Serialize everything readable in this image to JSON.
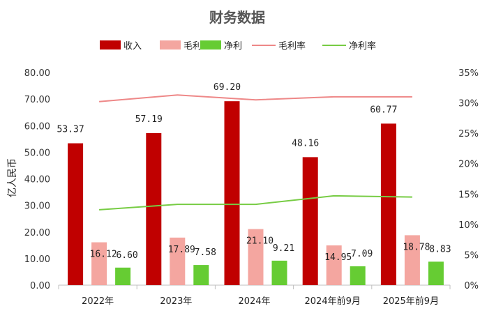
{
  "chart_data": {
    "type": "bar",
    "title": "财务数据",
    "ylabel": "亿人民币",
    "categories": [
      "2022年",
      "2023年",
      "2024年",
      "2024年前9月",
      "2025年前9月"
    ],
    "series": [
      {
        "name": "收入",
        "kind": "bar",
        "color": "#c00000",
        "values": [
          53.37,
          57.19,
          69.2,
          48.16,
          60.77
        ],
        "labels": [
          "53.37",
          "57.19",
          "69.20",
          "48.16",
          "60.77"
        ]
      },
      {
        "name": "毛利",
        "kind": "bar",
        "color": "#f4a6a0",
        "values": [
          16.12,
          17.89,
          21.1,
          14.95,
          18.78
        ],
        "labels": [
          "16.12",
          "17.89",
          "21.10",
          "14.95",
          "18.78"
        ]
      },
      {
        "name": "净利",
        "kind": "bar",
        "color": "#66cc33",
        "values": [
          6.6,
          7.58,
          9.21,
          7.09,
          8.83
        ],
        "labels": [
          "6.60",
          "7.58",
          "9.21",
          "7.09",
          "8.83"
        ]
      },
      {
        "name": "毛利率",
        "kind": "line",
        "axis": "right",
        "color": "#ee8888",
        "values": [
          30.2,
          31.3,
          30.5,
          31.0,
          31.0
        ]
      },
      {
        "name": "净利率",
        "kind": "line",
        "axis": "right",
        "color": "#77cc44",
        "values": [
          12.4,
          13.3,
          13.3,
          14.7,
          14.5
        ]
      }
    ],
    "ylim": [
      0,
      80
    ],
    "yticks": [
      "0.00",
      "10.00",
      "20.00",
      "30.00",
      "40.00",
      "50.00",
      "60.00",
      "70.00",
      "80.00"
    ],
    "y2lim": [
      0,
      35
    ],
    "y2ticks": [
      "0%",
      "5%",
      "10%",
      "15%",
      "20%",
      "25%",
      "30%",
      "35%"
    ],
    "legend_position": "top",
    "grid": false
  }
}
